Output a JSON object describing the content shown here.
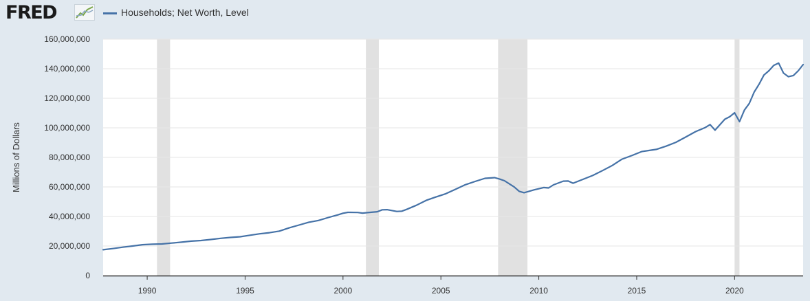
{
  "header": {
    "logo_text": "FRED",
    "logo_icon": "chart-line-icon"
  },
  "colors": {
    "page_background": "#e1e9f0",
    "plot_background": "#ffffff",
    "series_line": "#4572a7",
    "recession_band": "#e1e1e1",
    "gridline": "#e6e6e6"
  },
  "chart_data": {
    "type": "line",
    "title": "",
    "xlabel": "",
    "ylabel": "Millions of Dollars",
    "legend": "top-left",
    "grid": true,
    "xlim": [
      1987.75,
      2023.5
    ],
    "ylim": [
      0,
      160000000
    ],
    "x_ticks": [
      1990,
      1995,
      2000,
      2005,
      2010,
      2015,
      2020
    ],
    "y_ticks": [
      0,
      20000000,
      40000000,
      60000000,
      80000000,
      100000000,
      120000000,
      140000000,
      160000000
    ],
    "y_tick_labels": [
      "0",
      "20,000,000",
      "40,000,000",
      "60,000,000",
      "80,000,000",
      "100,000,000",
      "120,000,000",
      "140,000,000",
      "160,000,000"
    ],
    "recessions": [
      [
        1990.5,
        1991.17
      ],
      [
        2001.17,
        2001.83
      ],
      [
        2007.92,
        2009.42
      ],
      [
        2020.0,
        2020.25
      ]
    ],
    "series": [
      {
        "name": "Households; Net Worth, Level",
        "x": [
          1987.75,
          1988.25,
          1988.75,
          1989.25,
          1989.75,
          1990.25,
          1990.75,
          1991.25,
          1991.75,
          1992.25,
          1992.75,
          1993.25,
          1993.75,
          1994.25,
          1994.75,
          1995.25,
          1995.75,
          1996.25,
          1996.75,
          1997.25,
          1997.75,
          1998.25,
          1998.75,
          1999.25,
          1999.75,
          2000.0,
          2000.25,
          2000.75,
          2001.0,
          2001.25,
          2001.75,
          2002.0,
          2002.25,
          2002.75,
          2003.0,
          2003.25,
          2003.75,
          2004.25,
          2004.75,
          2005.25,
          2005.75,
          2006.25,
          2006.75,
          2007.25,
          2007.75,
          2008.0,
          2008.25,
          2008.75,
          2009.0,
          2009.25,
          2009.75,
          2010.25,
          2010.5,
          2010.75,
          2011.25,
          2011.5,
          2011.75,
          2012.25,
          2012.75,
          2013.25,
          2013.75,
          2014.25,
          2014.75,
          2015.25,
          2015.5,
          2016.0,
          2016.5,
          2017.0,
          2017.5,
          2018.0,
          2018.5,
          2018.75,
          2019.0,
          2019.5,
          2019.75,
          2020.0,
          2020.25,
          2020.5,
          2020.75,
          2021.0,
          2021.25,
          2021.5,
          2021.75,
          2022.0,
          2022.25,
          2022.5,
          2022.75,
          2023.0,
          2023.25,
          2023.5
        ],
        "values": [
          17500000,
          18300000,
          19200000,
          20000000,
          20900000,
          21200000,
          21400000,
          22000000,
          22600000,
          23300000,
          23700000,
          24400000,
          25200000,
          25800000,
          26300000,
          27300000,
          28300000,
          29000000,
          30100000,
          32300000,
          34200000,
          36100000,
          37300000,
          39300000,
          41100000,
          42200000,
          42800000,
          42700000,
          42300000,
          42600000,
          43200000,
          44500000,
          44600000,
          43400000,
          43600000,
          44800000,
          47600000,
          50900000,
          53200000,
          55400000,
          58400000,
          61500000,
          63700000,
          65800000,
          66300000,
          65300000,
          64200000,
          59900000,
          57000000,
          56100000,
          58000000,
          59600000,
          59300000,
          61400000,
          63900000,
          64000000,
          62500000,
          65100000,
          67700000,
          71000000,
          74500000,
          78800000,
          81200000,
          83900000,
          84400000,
          85400000,
          87600000,
          90200000,
          93700000,
          97400000,
          100200000,
          102200000,
          98400000,
          105800000,
          107500000,
          110200000,
          104200000,
          112000000,
          116500000,
          124200000,
          129500000,
          135700000,
          138600000,
          142300000,
          143800000,
          137000000,
          134600000,
          135400000,
          138600000,
          142800000
        ]
      }
    ]
  }
}
